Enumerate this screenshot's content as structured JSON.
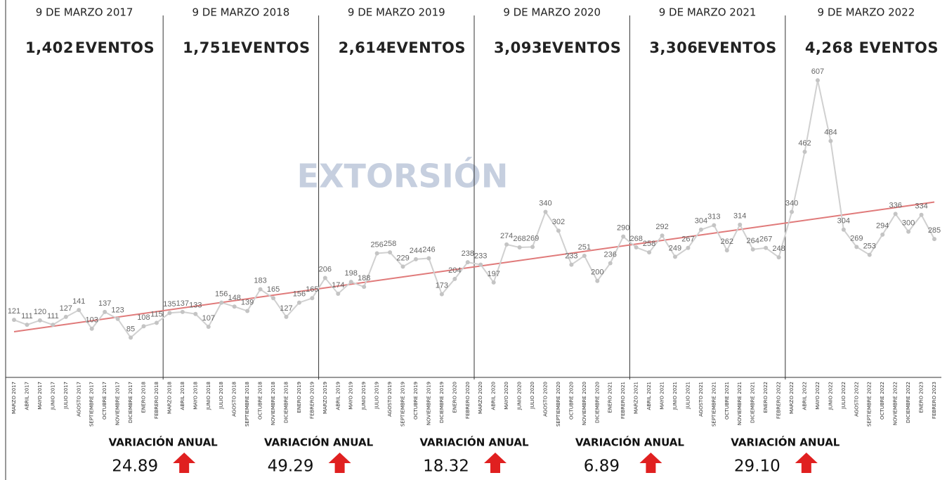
{
  "chart_data": {
    "type": "line",
    "title": "EXTORSIÓN",
    "categories": [
      "MARZO 2017",
      "ABRIL 2017",
      "MAYO 2017",
      "JUNIO 2017",
      "JULIO 2017",
      "AGOSTO 2017",
      "SEPTIEMBRE 2017",
      "OCTUBRE 2017",
      "NOVIEMBRE 2017",
      "DICIEMBRE 2017",
      "ENERO 2018",
      "FEBRERO 2018",
      "MARZO 2018",
      "ABRIL 2018",
      "MAYO 2018",
      "JUNIO 2018",
      "JULIO 2018",
      "AGOSTO 2018",
      "SEPTIEMBRE 2018",
      "OCTUBRE 2018",
      "NOVIEMBRE 2018",
      "DICIEMBRE 2018",
      "ENERO 2019",
      "FEBRERO 2019",
      "MARZO 2019",
      "ABRIL 2019",
      "MAYO 2019",
      "JUNIO 2019",
      "JULIO 2019",
      "AGOSTO 2019",
      "SEPTIEMBRE 2019",
      "OCTUBRE 2019",
      "NOVIEMBRE 2019",
      "DICIEMBRE 2019",
      "ENERO 2020",
      "FEBRERO 2020",
      "MARZO 2020",
      "ABRIL 2020",
      "MAYO 2020",
      "JUNIO 2020",
      "JULIO 2020",
      "AGOSTO 2020",
      "SEPTIEMBRE 2020",
      "OCTUBRE 2020",
      "NOVIEMBRE 2020",
      "DICIEMBRE 2020",
      "ENERO 2021",
      "FEBRERO 2021",
      "MARZO 2021",
      "ABRIL 2021",
      "MAYO 2021",
      "JUNIO 2021",
      "JULIO 2021",
      "AGOSTO 2021",
      "SEPTIEMBRE 2021",
      "OCTUBRE 2021",
      "NOVIEMBRE 2021",
      "DICIEMBRE 2021",
      "ENERO 2022",
      "FEBRERO 2022",
      "MARZO 2022",
      "ABRIL 2022",
      "MAYO 2022",
      "JUNIO 2022",
      "JULIO 2022",
      "AGOSTO 2022",
      "SEPTIEMBRE 2022",
      "OCTUBRE 2022",
      "NOVIEMBRE 2022",
      "DICIEMBRE 2022",
      "ENERO 2023",
      "FEBRERO 2023"
    ],
    "series": [
      {
        "name": "EXTORSIÓN",
        "color": "#d0d0d0",
        "values": [
          121,
          111,
          120,
          111,
          127,
          141,
          103,
          137,
          123,
          85,
          108,
          115,
          135,
          137,
          133,
          107,
          156,
          148,
          139,
          183,
          165,
          127,
          156,
          165,
          206,
          174,
          198,
          188,
          256,
          258,
          229,
          244,
          246,
          173,
          204,
          238,
          233,
          197,
          274,
          268,
          269,
          340,
          302,
          233,
          251,
          200,
          236,
          290,
          268,
          258,
          292,
          249,
          267,
          304,
          313,
          262,
          314,
          264,
          267,
          248,
          340,
          462,
          607,
          484,
          304,
          269,
          253,
          294,
          336,
          300,
          334,
          285
        ]
      }
    ],
    "trend": {
      "color": "#e07a7a",
      "values": [
        97,
        360
      ]
    },
    "ylim": [
      0,
      770
    ],
    "periods": [
      {
        "title": "9 DE MARZO 2017",
        "total": "1,402",
        "unit": "EVENTOS"
      },
      {
        "title": "9 DE MARZO 2018",
        "total": "1,751",
        "unit": "EVENTOS"
      },
      {
        "title": "9 DE MARZO 2019",
        "total": "2,614",
        "unit": "EVENTOS"
      },
      {
        "title": "9 DE MARZO 2020",
        "total": "3,093",
        "unit": "EVENTOS"
      },
      {
        "title": "9 DE MARZO 2021",
        "total": "3,306",
        "unit": "EVENTOS"
      },
      {
        "title": "9 DE MARZO 2022",
        "total": "4,268",
        "unit": "EVENTOS"
      }
    ],
    "variations": [
      {
        "label": "VARIACIÓN ANUAL",
        "value": "24.89"
      },
      {
        "label": "VARIACIÓN ANUAL",
        "value": "49.29"
      },
      {
        "label": "VARIACIÓN ANUAL",
        "value": "18.32"
      },
      {
        "label": "VARIACIÓN ANUAL",
        "value": "6.89"
      },
      {
        "label": "VARIACIÓN ANUAL",
        "value": "29.10"
      }
    ],
    "arrow_color": "#e02020"
  }
}
